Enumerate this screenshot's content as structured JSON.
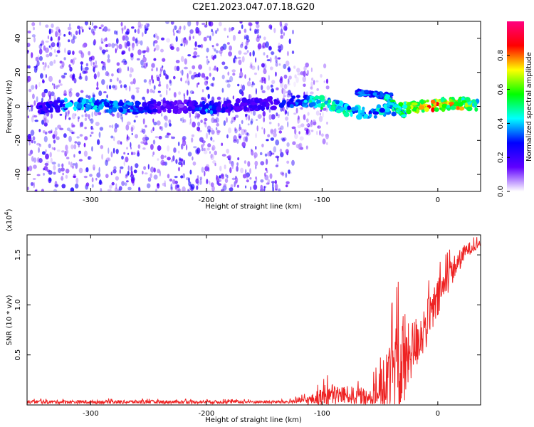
{
  "title": "C2E1.2023.047.07.18.G20",
  "chart_data": [
    {
      "type": "heatmap",
      "xlabel": "Height of straight line (km)",
      "ylabel": "Frequency (Hz)",
      "xlim": [
        -355,
        37
      ],
      "ylim": [
        -50,
        50
      ],
      "x_ticks": [
        -300,
        -200,
        -100,
        0
      ],
      "x_tick_labels": [
        "-300",
        "-200",
        "-100",
        "0"
      ],
      "y_ticks": [
        -40,
        -20,
        0,
        20,
        40
      ],
      "y_tick_labels": [
        "-40",
        "-20",
        "0",
        "20",
        "40"
      ],
      "colorbar": {
        "label": "Normalized spectral amplitude",
        "range": [
          0,
          1
        ],
        "ticks": [
          0.0,
          0.2,
          0.4,
          0.6,
          0.8
        ],
        "tick_labels": [
          "0.0",
          "0.2",
          "0.4",
          "0.6",
          "0.8"
        ],
        "stops": [
          "#ffffff",
          "#6000ff",
          "#0000ff",
          "#00ffff",
          "#00ff00",
          "#ffff00",
          "#ff0000",
          "#ff0080"
        ]
      },
      "noise_segments": [
        {
          "x": [
            -355,
            -125
          ],
          "amplitude": 0.18,
          "freq_spread": 50
        },
        {
          "x": [
            -125,
            -95
          ],
          "amplitude": 0.1,
          "freq_spread": 25
        }
      ],
      "ridge": [
        {
          "x": -345,
          "f": -1,
          "amp": 0.25
        },
        {
          "x": -330,
          "f": 0,
          "amp": 0.3
        },
        {
          "x": -320,
          "f": 1,
          "amp": 0.4
        },
        {
          "x": -300,
          "f": 1,
          "amp": 0.42
        },
        {
          "x": -280,
          "f": 0,
          "amp": 0.38
        },
        {
          "x": -260,
          "f": -1,
          "amp": 0.35
        },
        {
          "x": -240,
          "f": 0,
          "amp": 0.2
        },
        {
          "x": -220,
          "f": 0,
          "amp": 0.15
        },
        {
          "x": -200,
          "f": -1,
          "amp": 0.4
        },
        {
          "x": -185,
          "f": 0,
          "amp": 0.25
        },
        {
          "x": -160,
          "f": 1,
          "amp": 0.2
        },
        {
          "x": -140,
          "f": 2,
          "amp": 0.25
        },
        {
          "x": -120,
          "f": 3,
          "amp": 0.35
        },
        {
          "x": -105,
          "f": 3,
          "amp": 0.5
        },
        {
          "x": -90,
          "f": 1,
          "amp": 0.5
        },
        {
          "x": -75,
          "f": -3,
          "amp": 0.45
        },
        {
          "x": -60,
          "f": -4,
          "amp": 0.4
        },
        {
          "x": -45,
          "f": -2,
          "amp": 0.45
        },
        {
          "x": -30,
          "f": -1,
          "amp": 0.6
        },
        {
          "x": -15,
          "f": 0,
          "amp": 0.8
        },
        {
          "x": 0,
          "f": 1,
          "amp": 0.8
        },
        {
          "x": 15,
          "f": 2,
          "amp": 0.75
        },
        {
          "x": 37,
          "f": 1,
          "amp": 0.55
        }
      ],
      "side_branches": [
        {
          "x": [
            -70,
            -40
          ],
          "f": [
            8,
            6
          ],
          "amp": 0.3
        },
        {
          "x": [
            -45,
            -28
          ],
          "f": [
            6,
            -6
          ],
          "amp": 0.45
        }
      ]
    },
    {
      "type": "line",
      "xlabel": "Height of straight line (km)",
      "ylabel": "SNR (10 * v/v)",
      "y_multiplier": "(x10⁴)",
      "y_multiplier_base": "(x10",
      "y_multiplier_exp": "4",
      "y_multiplier_close": ")",
      "xlim": [
        -355,
        37
      ],
      "ylim": [
        0,
        1.7
      ],
      "x_ticks": [
        -300,
        -200,
        -100,
        0
      ],
      "x_tick_labels": [
        "-300",
        "-200",
        "-100",
        "0"
      ],
      "y_ticks": [
        0.5,
        1.0,
        1.5
      ],
      "y_tick_labels": [
        "0.5",
        "1.0",
        "1.5"
      ],
      "series": [
        {
          "color": "#ee2222",
          "envelope": [
            {
              "x": -355,
              "base": 0.03,
              "amp": 0.03
            },
            {
              "x": -250,
              "base": 0.03,
              "amp": 0.03
            },
            {
              "x": -130,
              "base": 0.03,
              "amp": 0.025
            },
            {
              "x": -110,
              "base": 0.05,
              "amp": 0.08
            },
            {
              "x": -95,
              "base": 0.1,
              "amp": 0.2
            },
            {
              "x": -80,
              "base": 0.1,
              "amp": 0.15
            },
            {
              "x": -60,
              "base": 0.08,
              "amp": 0.15
            },
            {
              "x": -50,
              "base": 0.15,
              "amp": 0.3
            },
            {
              "x": -40,
              "base": 0.3,
              "amp": 0.7
            },
            {
              "x": -30,
              "base": 0.4,
              "amp": 1.0
            },
            {
              "x": -25,
              "base": 0.5,
              "amp": 0.5
            },
            {
              "x": -10,
              "base": 0.8,
              "amp": 0.4
            },
            {
              "x": 0,
              "base": 1.05,
              "amp": 0.35
            },
            {
              "x": 10,
              "base": 1.3,
              "amp": 0.25
            },
            {
              "x": 25,
              "base": 1.55,
              "amp": 0.12
            },
            {
              "x": 37,
              "base": 1.62,
              "amp": 0.06
            }
          ]
        }
      ]
    }
  ]
}
